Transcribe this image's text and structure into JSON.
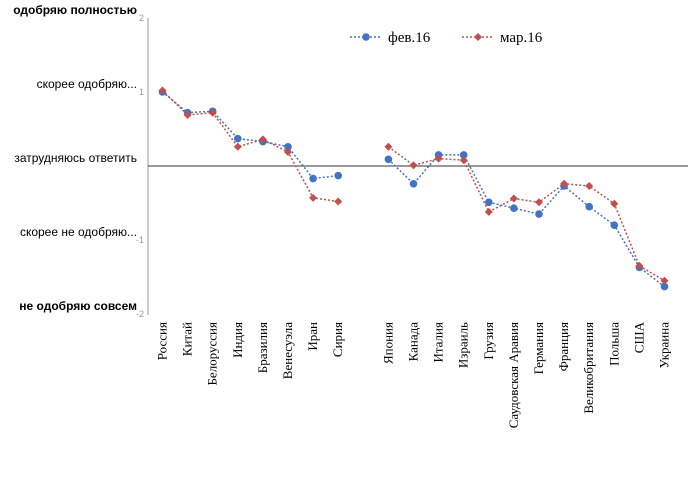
{
  "chart_data": {
    "type": "line",
    "categories": [
      "Россия",
      "Китай",
      "Белоруссия",
      "Индия",
      "Бразилия",
      "Венесуэла",
      "Иран",
      "Сирия",
      "",
      "Япония",
      "Канада",
      "Италия",
      "Израиль",
      "Грузия",
      "Саудовская Аравия",
      "Германия",
      "Франция",
      "Великобритания",
      "Польша",
      "США",
      "Украина"
    ],
    "series": [
      {
        "name": "фев.16",
        "color": "#4472C4",
        "marker": "circle",
        "values": [
          1.0,
          0.72,
          0.74,
          0.37,
          0.33,
          0.26,
          -0.17,
          -0.13,
          null,
          0.09,
          -0.24,
          0.15,
          0.15,
          -0.49,
          -0.57,
          -0.65,
          -0.27,
          -0.55,
          -0.8,
          -1.37,
          -1.63
        ]
      },
      {
        "name": "мар.16",
        "color": "#C0504D",
        "marker": "diamond",
        "values": [
          1.02,
          0.69,
          0.72,
          0.26,
          0.36,
          0.19,
          -0.43,
          -0.48,
          null,
          0.26,
          0.01,
          0.1,
          0.08,
          -0.62,
          -0.44,
          -0.49,
          -0.24,
          -0.27,
          -0.51,
          -1.35,
          -1.55
        ]
      }
    ],
    "y_labels": [
      {
        "value": 2,
        "text": "одобряю полностью",
        "bold": true
      },
      {
        "value": 1,
        "text": "скорее  одобряю...",
        "bold": false
      },
      {
        "value": 0,
        "text": "затрудняюсь ответить",
        "bold": false
      },
      {
        "value": -1,
        "text": "скорее не одобряю...",
        "bold": false
      },
      {
        "value": -2,
        "text": "не одобряю совсем",
        "bold": true
      }
    ],
    "tick_marks": [
      {
        "value": 2,
        "text": "2"
      },
      {
        "value": 1,
        "text": "1"
      },
      {
        "value": -1,
        "text": "-1"
      },
      {
        "value": -2,
        "text": "-2"
      }
    ],
    "ylim": [
      -2,
      2
    ],
    "grid": false,
    "legend_position": "top-center"
  }
}
